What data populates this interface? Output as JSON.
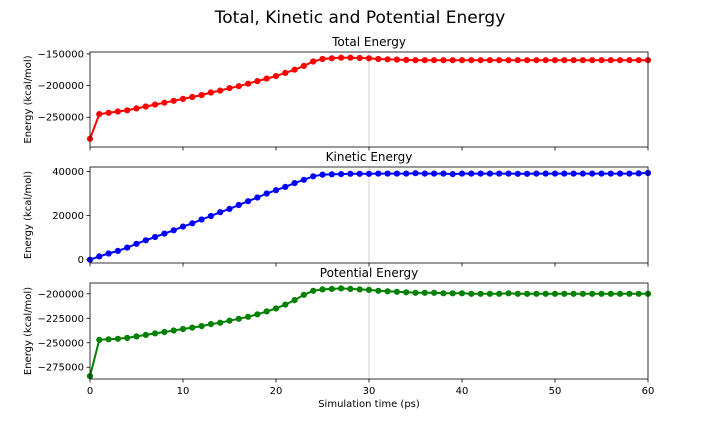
{
  "figure": {
    "title": "Total, Kinetic and Potential Energy"
  },
  "chart_data": [
    {
      "type": "line",
      "title": "Total Energy",
      "xlabel": "",
      "ylabel": "Energy (kcal/mol)",
      "xlim": [
        0,
        60
      ],
      "ylim": [
        -297000,
        -147000
      ],
      "yticks": [
        -150000,
        -200000,
        -250000
      ],
      "ytick_labels": [
        "−150000",
        "−200000",
        "−250000"
      ],
      "color": "#ff0000",
      "x": [
        0,
        1,
        2,
        3,
        4,
        5,
        6,
        7,
        8,
        9,
        10,
        11,
        12,
        13,
        14,
        15,
        16,
        17,
        18,
        19,
        20,
        21,
        22,
        23,
        24,
        25,
        26,
        27,
        28,
        29,
        30,
        31,
        32,
        33,
        34,
        35,
        36,
        37,
        38,
        39,
        40,
        41,
        42,
        43,
        44,
        45,
        46,
        47,
        48,
        49,
        50,
        51,
        52,
        53,
        54,
        55,
        56,
        57,
        58,
        59,
        60
      ],
      "y": [
        -284000,
        -245000,
        -243000,
        -241000,
        -239000,
        -236000,
        -233000,
        -230000,
        -227000,
        -224000,
        -221000,
        -218000,
        -215000,
        -211000,
        -208000,
        -204000,
        -201000,
        -197000,
        -193000,
        -189000,
        -185000,
        -180000,
        -175000,
        -169000,
        -162000,
        -158000,
        -157000,
        -156000,
        -156000,
        -156500,
        -157000,
        -158000,
        -158500,
        -159000,
        -159500,
        -160000,
        -160000,
        -160000,
        -160000,
        -160000,
        -160000,
        -160000,
        -160000,
        -160000,
        -160000,
        -160000,
        -160000,
        -160000,
        -160000,
        -160000,
        -160000,
        -160000,
        -160000,
        -160000,
        -160000,
        -160000,
        -160000,
        -160000,
        -160000,
        -160000,
        -160000
      ]
    },
    {
      "type": "line",
      "title": "Kinetic Energy",
      "xlabel": "",
      "ylabel": "Energy (kcal/mol)",
      "xlim": [
        0,
        60
      ],
      "ylim": [
        -1500,
        42000
      ],
      "yticks": [
        40000,
        20000,
        0
      ],
      "ytick_labels": [
        "40000",
        "20000",
        "0"
      ],
      "color": "#0000ff",
      "x": [
        0,
        1,
        2,
        3,
        4,
        5,
        6,
        7,
        8,
        9,
        10,
        11,
        12,
        13,
        14,
        15,
        16,
        17,
        18,
        19,
        20,
        21,
        22,
        23,
        24,
        25,
        26,
        27,
        28,
        29,
        30,
        31,
        32,
        33,
        34,
        35,
        36,
        37,
        38,
        39,
        40,
        41,
        42,
        43,
        44,
        45,
        46,
        47,
        48,
        49,
        50,
        51,
        52,
        53,
        54,
        55,
        56,
        57,
        58,
        59,
        60
      ],
      "y": [
        0,
        1500,
        2800,
        4000,
        5500,
        7200,
        8800,
        10300,
        11800,
        13300,
        15000,
        16500,
        18200,
        19800,
        21500,
        23000,
        24800,
        26500,
        28200,
        30000,
        31500,
        33000,
        34700,
        36200,
        37800,
        38500,
        38700,
        38800,
        38900,
        38900,
        38900,
        39000,
        39000,
        39000,
        39000,
        39200,
        39000,
        39000,
        39000,
        38800,
        39000,
        39000,
        39000,
        39000,
        39000,
        39000,
        38900,
        38900,
        39000,
        39000,
        39000,
        39000,
        39000,
        39000,
        39000,
        39000,
        39000,
        39000,
        39000,
        39100,
        39300
      ]
    },
    {
      "type": "line",
      "title": "Potential Energy",
      "xlabel": "Simulation time (ps)",
      "ylabel": "Energy (kcal/mol)",
      "xlim": [
        0,
        60
      ],
      "ylim": [
        -287000,
        -189000
      ],
      "yticks": [
        -200000,
        -225000,
        -250000,
        -275000
      ],
      "ytick_labels": [
        "−200000",
        "−225000",
        "−250000",
        "−275000"
      ],
      "xticks": [
        0,
        10,
        20,
        30,
        40,
        50,
        60
      ],
      "xtick_labels": [
        "0",
        "10",
        "20",
        "30",
        "40",
        "50",
        "60"
      ],
      "color": "#008000",
      "x": [
        0,
        1,
        2,
        3,
        4,
        5,
        6,
        7,
        8,
        9,
        10,
        11,
        12,
        13,
        14,
        15,
        16,
        17,
        18,
        19,
        20,
        21,
        22,
        23,
        24,
        25,
        26,
        27,
        28,
        29,
        30,
        31,
        32,
        33,
        34,
        35,
        36,
        37,
        38,
        39,
        40,
        41,
        42,
        43,
        44,
        45,
        46,
        47,
        48,
        49,
        50,
        51,
        52,
        53,
        54,
        55,
        56,
        57,
        58,
        59,
        60
      ],
      "y": [
        -284000,
        -247000,
        -246500,
        -246000,
        -245000,
        -243500,
        -242000,
        -240500,
        -239000,
        -237500,
        -236000,
        -234500,
        -233000,
        -231000,
        -229500,
        -227500,
        -225500,
        -223500,
        -221000,
        -218000,
        -215000,
        -211000,
        -206500,
        -201000,
        -197000,
        -195500,
        -195000,
        -194500,
        -195000,
        -195500,
        -196000,
        -197000,
        -197500,
        -198000,
        -198500,
        -199000,
        -199000,
        -199000,
        -199500,
        -199500,
        -199500,
        -200000,
        -200000,
        -200000,
        -200000,
        -199500,
        -200000,
        -200000,
        -200000,
        -200000,
        -200000,
        -200000,
        -200000,
        -200000,
        -200000,
        -200000,
        -200000,
        -200000,
        -200000,
        -200000,
        -200000
      ]
    }
  ],
  "highlight": {
    "x": 30,
    "color": "#d9d9d9"
  }
}
